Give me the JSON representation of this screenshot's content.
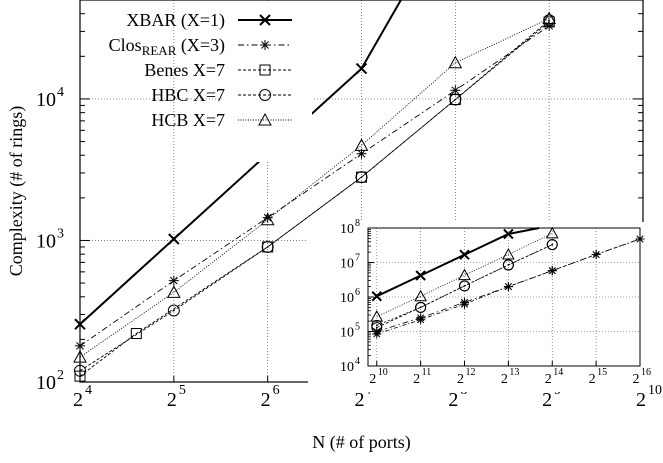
{
  "chart_data": [
    {
      "type": "line",
      "xlabel": "N (# of ports)",
      "ylabel": "Complexity (# of rings)",
      "xscale": "log2",
      "yscale": "log10",
      "xlim": [
        4,
        10
      ],
      "ylim": [
        100,
        50000
      ],
      "x_ticks": [
        4,
        5,
        6,
        7,
        8,
        9,
        10
      ],
      "y_ticks": [
        100,
        1000,
        10000
      ],
      "grid": "dotted, on",
      "legend": "top-right",
      "series": [
        {
          "name": "XBAR (X=1)",
          "style": "solid-x",
          "x": [
            4,
            5,
            6,
            7,
            7.42
          ],
          "y": [
            256,
            1024,
            4096,
            16384,
            50000
          ]
        },
        {
          "name": "Clos<sub>REAR</sub> (X=3)",
          "style": "dashdot-star",
          "x": [
            4,
            5,
            6,
            7,
            8,
            9
          ],
          "y": [
            180,
            520,
            1450,
            4100,
            11500,
            32800
          ]
        },
        {
          "name": "Benes X=7",
          "style": "dashed-square",
          "x": [
            4,
            4.6,
            6,
            7,
            8,
            9
          ],
          "y": [
            110,
            220,
            900,
            2800,
            9900,
            35000
          ]
        },
        {
          "name": "HBC X=7",
          "style": "dashed-circle",
          "x": [
            4,
            5,
            6,
            7,
            8,
            9
          ],
          "y": [
            120,
            320,
            900,
            2800,
            9900,
            36000
          ]
        },
        {
          "name": "HCB X=7",
          "style": "dotted-triangle",
          "x": [
            4,
            5,
            6,
            7,
            8,
            9
          ],
          "y": [
            150,
            430,
            1400,
            4700,
            18000,
            37000
          ]
        }
      ],
      "legend_entries": [
        {
          "main": "XBAR (X=1)",
          "sub": "",
          "tail": ""
        },
        {
          "main": "Clos",
          "sub": "REAR",
          "tail": " (X=3)"
        },
        {
          "main": "Benes X=7",
          "sub": "",
          "tail": ""
        },
        {
          "main": "HBC X=7",
          "sub": "",
          "tail": ""
        },
        {
          "main": "HCB X=7",
          "sub": "",
          "tail": ""
        }
      ]
    },
    {
      "type": "line",
      "inset": true,
      "xscale": "log2",
      "yscale": "log10",
      "xlim": [
        9.8,
        16
      ],
      "ylim": [
        10000,
        100000000
      ],
      "x_ticks": [
        10,
        11,
        12,
        13,
        14,
        15,
        16
      ],
      "y_ticks": [
        10000,
        100000,
        1000000,
        10000000,
        100000000
      ],
      "series": [
        {
          "name": "XBAR (X=1)",
          "style": "solid-x",
          "x": [
            10,
            11,
            12,
            13,
            13.7
          ],
          "y": [
            1050000,
            4200000,
            16800000,
            67000000,
            100000000
          ]
        },
        {
          "name": "Clos<sub>REAR</sub> (X=3)",
          "style": "dashdot-star-a",
          "x": [
            10,
            11,
            12,
            13,
            14,
            15,
            16
          ],
          "y": [
            100000,
            250000,
            700000,
            2000000,
            5800000,
            17000000,
            48000000
          ]
        },
        {
          "name": "Clos<sub>REAR</sub> (X=3)",
          "style": "dashdot-star-b",
          "x": [
            10,
            11,
            12,
            13,
            14,
            15,
            16
          ],
          "y": [
            85000,
            220000,
            620000,
            2000000,
            5800000,
            17000000,
            48000000
          ]
        },
        {
          "name": "Benes X=7",
          "style": "dashed-circle",
          "x": [
            10,
            11,
            12,
            13,
            14
          ],
          "y": [
            130000,
            500000,
            2100000,
            8500000,
            33000000
          ]
        },
        {
          "name": "HBC X=7",
          "style": "dashed-circle-2",
          "x": [
            10,
            11,
            12,
            13,
            14
          ],
          "y": [
            150000,
            500000,
            2100000,
            8500000,
            33000000
          ]
        },
        {
          "name": "HCB X=7",
          "style": "dotted-triangle",
          "x": [
            10,
            11,
            12,
            13,
            14
          ],
          "y": [
            270000,
            1050000,
            4300000,
            17000000,
            70000000
          ]
        }
      ]
    }
  ]
}
